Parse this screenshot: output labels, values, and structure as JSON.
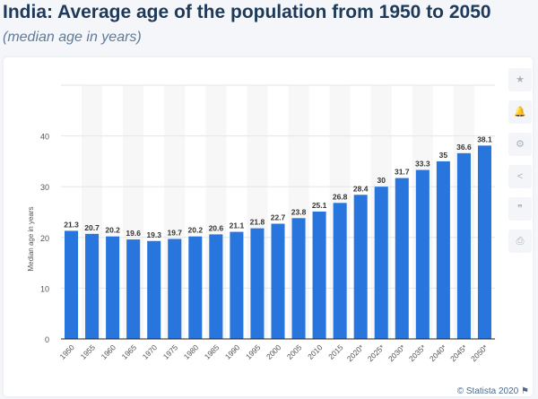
{
  "title": "India: Average age of the population from 1950 to 2050",
  "subtitle": "(median age in years)",
  "credit": "© Statista 2020",
  "side_icons": [
    "star-icon",
    "bell-icon",
    "gear-icon",
    "share-icon",
    "quote-icon",
    "print-icon"
  ],
  "chart_data": {
    "type": "bar",
    "ylabel": "Median age in years",
    "ylim": [
      0,
      50
    ],
    "yticks": [
      0,
      10,
      20,
      30,
      40
    ],
    "grid": true,
    "bar_color": "#2876dd",
    "categories": [
      "1950",
      "1955",
      "1960",
      "1965",
      "1970",
      "1975",
      "1980",
      "1985",
      "1990",
      "1995",
      "2000",
      "2005",
      "2010",
      "2015",
      "2020*",
      "2025*",
      "2030*",
      "2035*",
      "2040*",
      "2045*",
      "2050*"
    ],
    "values": [
      21.3,
      20.7,
      20.2,
      19.6,
      19.3,
      19.7,
      20.2,
      20.6,
      21.1,
      21.8,
      22.7,
      23.8,
      25.1,
      26.8,
      28.4,
      30,
      31.7,
      33.3,
      35,
      36.6,
      38.1
    ]
  }
}
